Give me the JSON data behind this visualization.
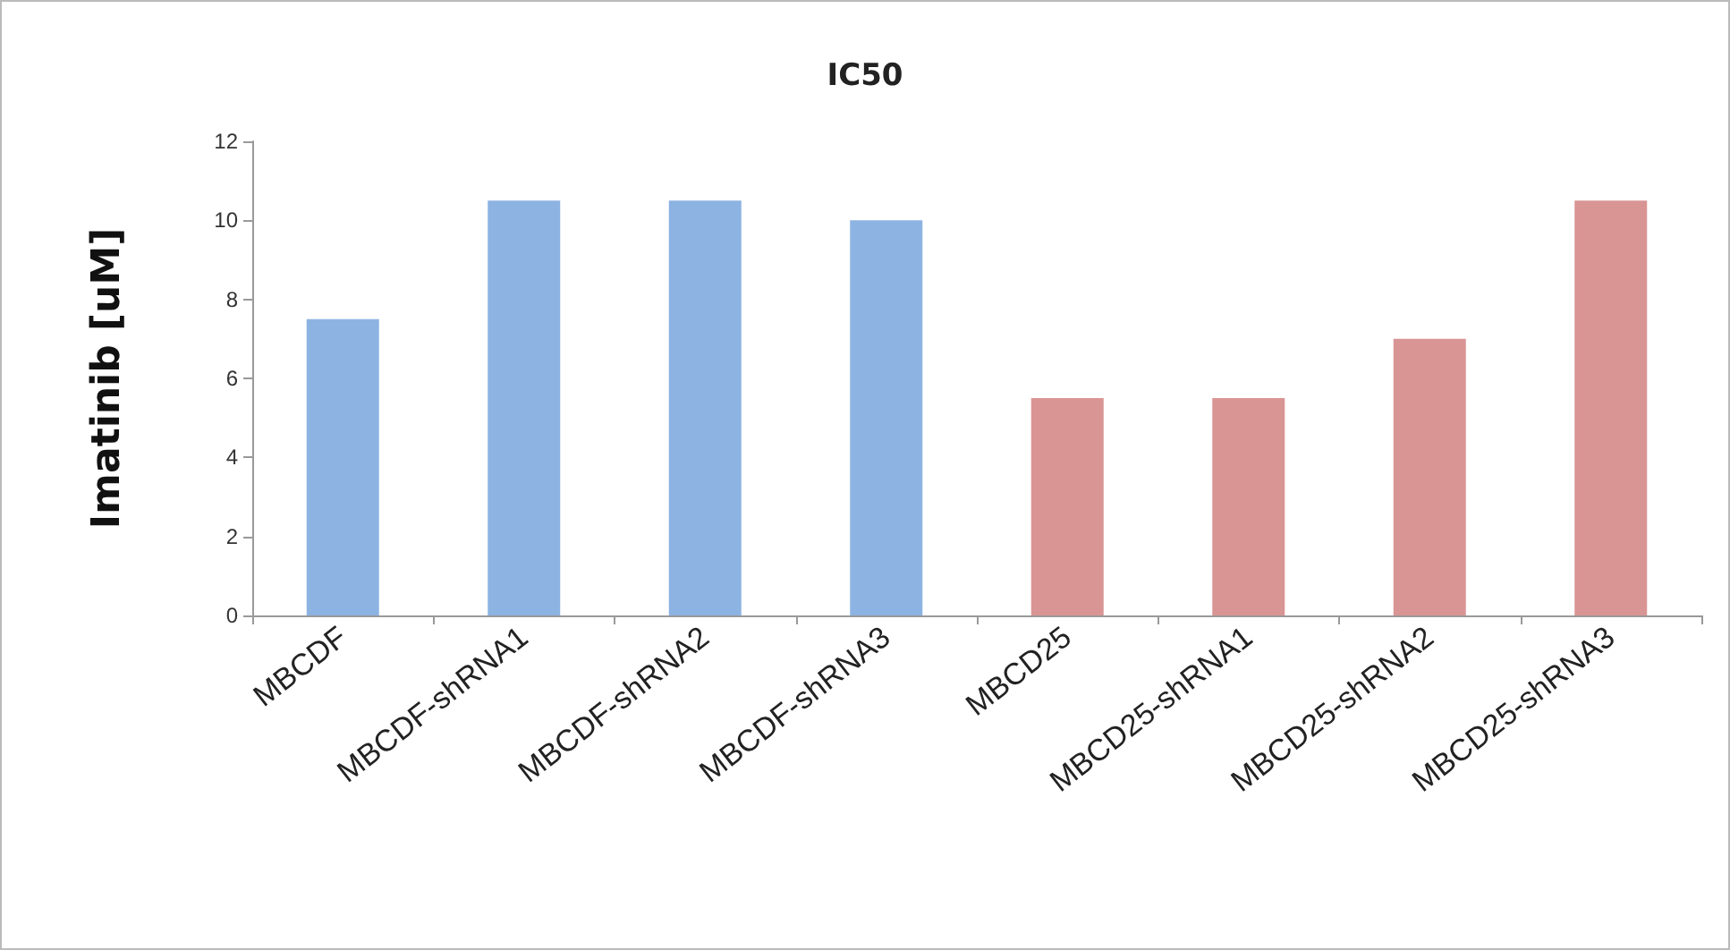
{
  "chart_data": {
    "type": "bar",
    "title": "IC50",
    "ylabel": "Imatinib [uM]",
    "categories": [
      "MBCDF",
      "MBCDF-shRNA1",
      "MBCDF-shRNA2",
      "MBCDF-shRNA3",
      "MBCD25",
      "MBCD25-shRNA1",
      "MBCD25-shRNA2",
      "MBCD25-shRNA3"
    ],
    "values": [
      7.5,
      10.5,
      10.5,
      10,
      5.5,
      5.5,
      7,
      10.5
    ],
    "colors": [
      "#8db3e2",
      "#8db3e2",
      "#8db3e2",
      "#8db3e2",
      "#d99594",
      "#d99594",
      "#d99594",
      "#d99594"
    ],
    "ylim": [
      0,
      12
    ],
    "yticks": [
      0,
      2,
      4,
      6,
      8,
      10,
      12
    ]
  }
}
